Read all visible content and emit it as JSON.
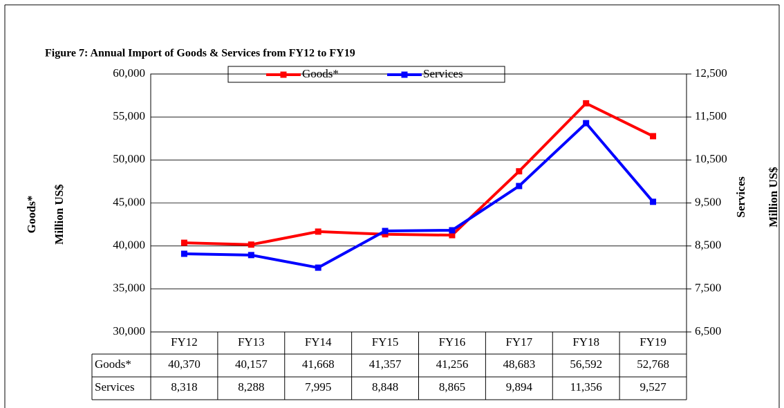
{
  "chart_data": {
    "type": "line",
    "title": "Figure 7: Annual Import of Goods & Services from  FY12 to FY19",
    "ylabel": [
      "Goods*",
      "Million US$"
    ],
    "y2label": [
      "Services",
      "Million US$"
    ],
    "categories": [
      "FY12",
      "FY13",
      "FY14",
      "FY15",
      "FY16",
      "FY17",
      "FY18",
      "FY19"
    ],
    "series": [
      {
        "name": "Goods*",
        "color": "#ff0000",
        "axis": "y",
        "values": [
          40370,
          40157,
          41668,
          41357,
          41256,
          48683,
          56592,
          52768
        ],
        "value_labels": [
          "40,370",
          "40,157",
          "41,668",
          "41,357",
          "41,256",
          "48,683",
          "56,592",
          "52,768"
        ]
      },
      {
        "name": "Services",
        "color": "#0000ff",
        "axis": "y2",
        "values": [
          8318,
          8288,
          7995,
          8848,
          8865,
          9894,
          11356,
          9527
        ],
        "value_labels": [
          "8,318",
          "8,288",
          "7,995",
          "8,848",
          "8,865",
          "9,894",
          "11,356",
          "9,527"
        ]
      }
    ],
    "ylim": [
      30000,
      60000
    ],
    "yticks": [
      {
        "value": 30000,
        "label": "30,000"
      },
      {
        "value": 35000,
        "label": "35,000"
      },
      {
        "value": 40000,
        "label": "40,000"
      },
      {
        "value": 45000,
        "label": "45,000"
      },
      {
        "value": 50000,
        "label": "50,000"
      },
      {
        "value": 55000,
        "label": "55,000"
      },
      {
        "value": 60000,
        "label": "60,000"
      }
    ],
    "y2lim": [
      6500,
      12500
    ],
    "y2ticks": [
      {
        "value": 6500,
        "label": "6,500"
      },
      {
        "value": 7500,
        "label": "7,500"
      },
      {
        "value": 8500,
        "label": "8,500"
      },
      {
        "value": 9500,
        "label": "9,500"
      },
      {
        "value": 10500,
        "label": "10,500"
      },
      {
        "value": 11500,
        "label": "11,500"
      },
      {
        "value": 12500,
        "label": "12,500"
      }
    ],
    "grid": true,
    "legend": "top"
  }
}
